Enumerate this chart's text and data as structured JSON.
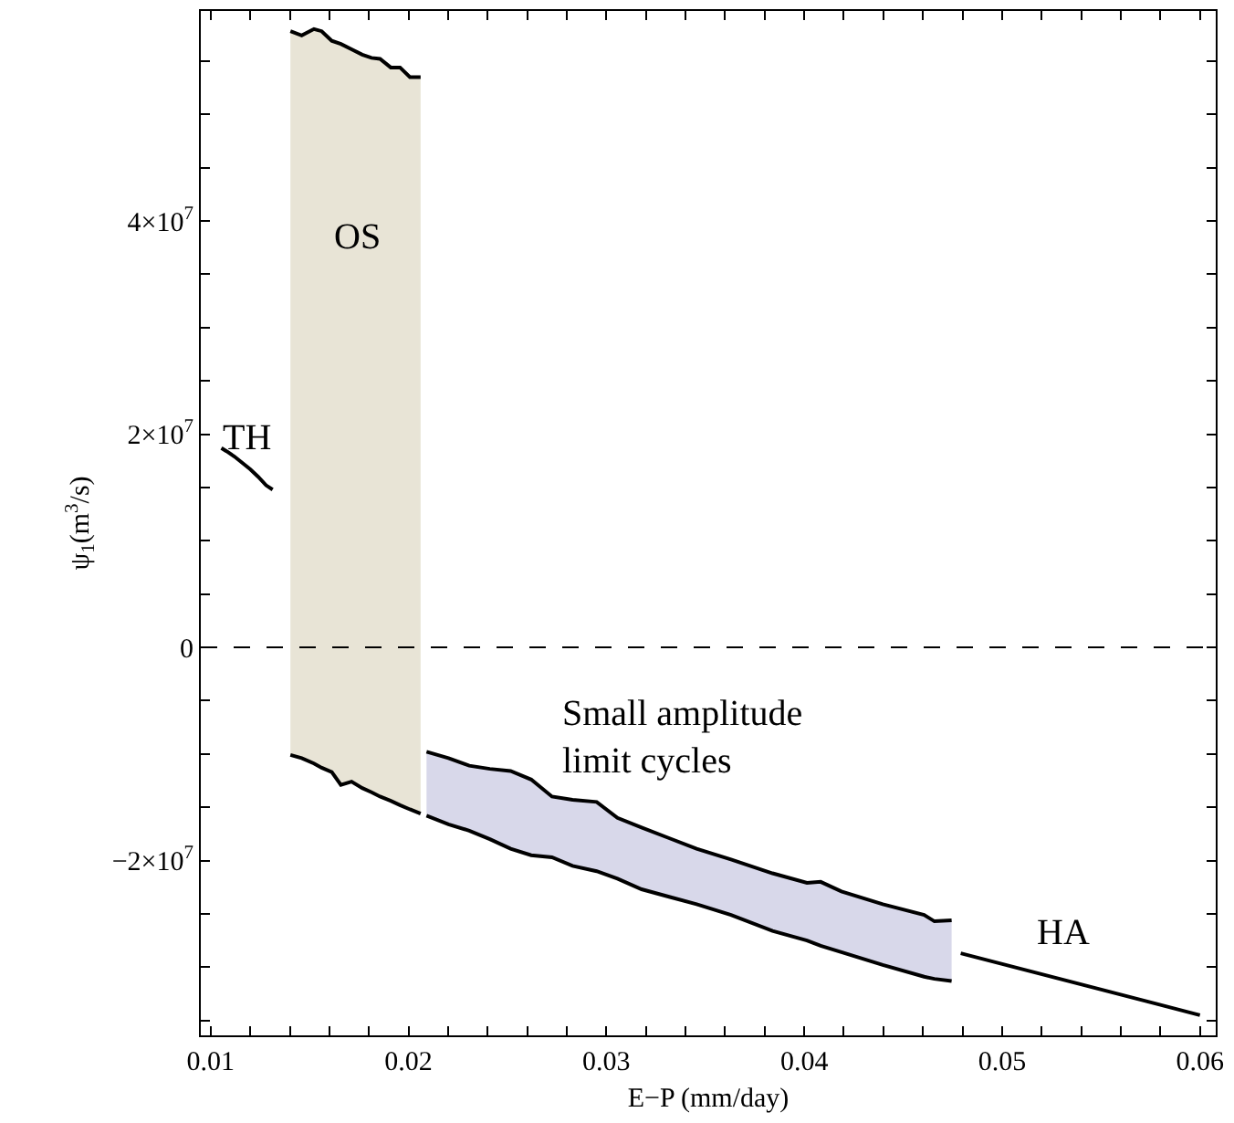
{
  "chart_data": {
    "type": "line",
    "xlabel": "E−P (mm/day)",
    "ylabel": "ψ$_{1}$(m$^{3}$/s)",
    "xlim": [
      0.0095,
      0.0608
    ],
    "ylim": [
      -36400000,
      59700000
    ],
    "xticks": [
      0.01,
      {
        "value": 0.012,
        "label": null
      },
      {
        "value": 0.014,
        "label": null
      },
      {
        "value": 0.016,
        "label": null
      },
      {
        "value": 0.018,
        "label": null
      },
      0.02,
      {
        "value": 0.022,
        "label": null
      },
      {
        "value": 0.024,
        "label": null
      },
      {
        "value": 0.026,
        "label": null
      },
      {
        "value": 0.028,
        "label": null
      },
      0.03,
      {
        "value": 0.032,
        "label": null
      },
      {
        "value": 0.034,
        "label": null
      },
      {
        "value": 0.036,
        "label": null
      },
      {
        "value": 0.038,
        "label": null
      },
      0.04,
      {
        "value": 0.042,
        "label": null
      },
      {
        "value": 0.044,
        "label": null
      },
      {
        "value": 0.046,
        "label": null
      },
      {
        "value": 0.048,
        "label": null
      },
      0.05,
      {
        "value": 0.052,
        "label": null
      },
      {
        "value": 0.054,
        "label": null
      },
      {
        "value": 0.056,
        "label": null
      },
      {
        "value": 0.058,
        "label": null
      },
      0.06
    ],
    "yticks": [
      {
        "value": -35000000,
        "label": null
      },
      {
        "value": -30000000,
        "label": null
      },
      {
        "value": -25000000,
        "label": null
      },
      {
        "value": -20000000,
        "label": "−2×10$^{7}$"
      },
      {
        "value": -15000000,
        "label": null
      },
      {
        "value": -10000000,
        "label": null
      },
      {
        "value": -5000000,
        "label": null
      },
      0,
      {
        "value": 5000000,
        "label": null
      },
      {
        "value": 10000000,
        "label": null
      },
      {
        "value": 15000000,
        "label": null
      },
      {
        "value": 20000000,
        "label": "2×10$^{7}$"
      },
      {
        "value": 25000000,
        "label": null
      },
      {
        "value": 30000000,
        "label": null
      },
      {
        "value": 35000000,
        "label": null
      },
      {
        "value": 40000000,
        "label": "4×10$^{7}$"
      },
      {
        "value": 45000000,
        "label": null
      },
      {
        "value": 50000000,
        "label": null
      },
      {
        "value": 55000000,
        "label": null
      }
    ],
    "ref_lines": [
      {
        "axis": "y",
        "value": 0,
        "line_style": "dashed",
        "color": "#000000"
      }
    ],
    "annotations": [
      "TH",
      "OS",
      "Small amplitude\nlimit cycles",
      "HA"
    ],
    "series": [
      {
        "color": "#000000",
        "x": [
          0.01054,
          0.0108,
          0.0112,
          0.0116,
          0.012,
          0.0124,
          0.0128,
          0.01313
        ],
        "values": [
          18700000,
          18400000,
          17900000,
          17300000,
          16700000,
          16000000,
          15200000,
          14800000
        ]
      },
      {
        "color": "#000000",
        "colors": [
          "#e8e4d6",
          "#e8e4d6",
          "#e8e4d6",
          "#e8e4d6",
          "#e8e4d6",
          "#e8e4d6",
          "#e8e4d6",
          "#e8e4d6",
          "#e8e4d6",
          "#e8e4d6",
          "#e8e4d6",
          "#e8e4d6",
          "#e8e4d6",
          "#e8e4d6"
        ],
        "upper": [
          57800000,
          57400000,
          58000000,
          57800000,
          56900000,
          56600000,
          56100000,
          55600000,
          55300000,
          55200000,
          54400000,
          54400000,
          53500000,
          53500000
        ],
        "x": [
          0.01403,
          0.0146,
          0.01522,
          0.01561,
          0.01612,
          0.01658,
          0.01712,
          0.01766,
          0.01813,
          0.01856,
          0.0191,
          0.01957,
          0.02007,
          0.02061
        ],
        "values": [
          57800000,
          57400000,
          58000000,
          57800000,
          56900000,
          56600000,
          56100000,
          55600000,
          55300000,
          55200000,
          54400000,
          54400000,
          53500000,
          53500000
        ],
        "lower": [
          -10100000,
          -10400000,
          -10900000,
          -11300000,
          -11700000,
          -12900000,
          -12600000,
          -13200000,
          -13600000,
          -14000000,
          -14400000,
          -14800000,
          -15200000,
          -15600000
        ]
      },
      {
        "color": "#000000",
        "colors": [
          "#d8d8ea",
          "#d8d8ea",
          "#d8d8ea",
          "#d8d8ea",
          "#d8d8ea",
          "#d8d8ea",
          "#d8d8ea",
          "#d8d8ea",
          "#d8d8ea",
          "#d8d8ea",
          "#d8d8ea",
          "#d8d8ea",
          "#d8d8ea",
          "#d8d8ea",
          "#d8d8ea",
          "#d8d8ea",
          "#d8d8ea",
          "#d8d8ea",
          "#d8d8ea",
          "#d8d8ea",
          "#d8d8ea",
          "#d8d8ea"
        ],
        "upper": [
          -9800000,
          -10400000,
          -11100000,
          -11400000,
          -11600000,
          -12400000,
          -14000000,
          -14300000,
          -14500000,
          -16000000,
          -16900000,
          -17900000,
          -18900000,
          -19900000,
          -21200000,
          -22100000,
          -22000000,
          -22900000,
          -24100000,
          -25100000,
          -25700000,
          -25600000
        ],
        "x": [
          0.02091,
          0.02202,
          0.02307,
          0.02411,
          0.02516,
          0.0262,
          0.02725,
          0.02829,
          0.02951,
          0.03056,
          0.03178,
          0.03317,
          0.03456,
          0.0363,
          0.0384,
          0.04014,
          0.04083,
          0.04188,
          0.04397,
          0.04606,
          0.04658,
          0.04745
        ],
        "values": [
          -9800000,
          -10400000,
          -11100000,
          -11400000,
          -11600000,
          -12400000,
          -14000000,
          -14300000,
          -14500000,
          -16000000,
          -16900000,
          -17900000,
          -18900000,
          -19900000,
          -21200000,
          -22100000,
          -22000000,
          -22900000,
          -24100000,
          -25100000,
          -25700000,
          -25600000
        ],
        "lower": [
          -15800000,
          -16600000,
          -17200000,
          -18000000,
          -18900000,
          -19500000,
          -19700000,
          -20500000,
          -21000000,
          -21700000,
          -22700000,
          -23400000,
          -24100000,
          -25100000,
          -26600000,
          -27500000,
          -28000000,
          -28600000,
          -29800000,
          -30900000,
          -31100000,
          -31300000
        ]
      },
      {
        "color": "#000000",
        "x": [
          0.01403,
          0.0146,
          0.01522,
          0.01561,
          0.01612,
          0.01658,
          0.01712,
          0.01766,
          0.01813,
          0.01856,
          0.0191,
          0.01957,
          0.02007,
          0.02061
        ],
        "values": [
          -10100000,
          -10400000,
          -10900000,
          -11300000,
          -11700000,
          -12900000,
          -12600000,
          -13200000,
          -13600000,
          -14000000,
          -14400000,
          -14800000,
          -15200000,
          -15600000
        ]
      },
      {
        "color": "#000000",
        "x": [
          0.02091,
          0.02202,
          0.02307,
          0.02411,
          0.02516,
          0.0262,
          0.02725,
          0.02829,
          0.02951,
          0.03056,
          0.03178,
          0.03317,
          0.03456,
          0.0363,
          0.0384,
          0.04014,
          0.04083,
          0.04188,
          0.04397,
          0.04606,
          0.04658,
          0.04745
        ],
        "values": [
          -15800000,
          -16600000,
          -17200000,
          -18000000,
          -18900000,
          -19500000,
          -19700000,
          -20500000,
          -21000000,
          -21700000,
          -22700000,
          -23400000,
          -24100000,
          -25100000,
          -26600000,
          -27500000,
          -28000000,
          -28600000,
          -29800000,
          -30900000,
          -31100000,
          -31300000
        ]
      },
      {
        "color": "#000000",
        "x": [
          0.04791,
          0.06
        ],
        "values": [
          -28700000,
          -34500000
        ]
      }
    ]
  }
}
